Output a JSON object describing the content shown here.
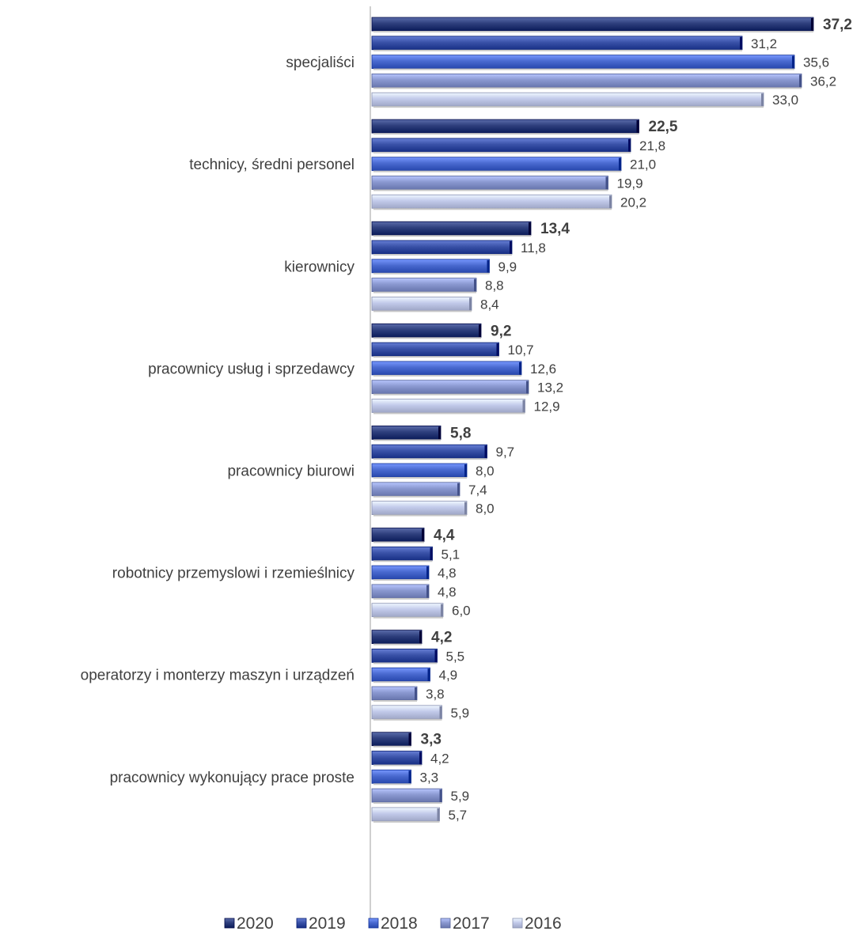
{
  "chart_data": {
    "type": "bar",
    "orientation": "horizontal",
    "categories": [
      "specjaliści",
      "technicy, średni personel",
      "kierownicy",
      "pracownicy usług i sprzedawcy",
      "pracownicy biurowi",
      "robotnicy przemyslowi i rzemieślnicy",
      "operatorzy i monterzy maszyn i urządzeń",
      "pracownicy wykonujący prace proste"
    ],
    "series": [
      {
        "name": "2020",
        "color": "#2E3F7D",
        "values": [
          37.2,
          22.5,
          13.4,
          9.2,
          5.8,
          4.4,
          4.2,
          3.3
        ],
        "labels": [
          "37,2",
          "22,5",
          "13,4",
          "9,2",
          "5,8",
          "4,4",
          "4,2",
          "3,3"
        ],
        "label_bold": true
      },
      {
        "name": "2019",
        "color": "#3A52A8",
        "values": [
          31.2,
          21.8,
          11.8,
          10.7,
          9.7,
          5.1,
          5.5,
          4.2
        ],
        "labels": [
          "31,2",
          "21,8",
          "11,8",
          "10,7",
          "9,7",
          "5,1",
          "5,5",
          "4,2"
        ]
      },
      {
        "name": "2018",
        "color": "#4A6AD0",
        "values": [
          35.6,
          21.0,
          9.9,
          12.6,
          8.0,
          4.8,
          4.9,
          3.3
        ],
        "labels": [
          "35,6",
          "21,0",
          "9,9",
          "12,6",
          "8,0",
          "4,8",
          "4,9",
          "3,3"
        ]
      },
      {
        "name": "2017",
        "color": "#8A98D0",
        "values": [
          36.2,
          19.9,
          8.8,
          13.2,
          7.4,
          4.8,
          3.8,
          5.9
        ],
        "labels": [
          "36,2",
          "19,9",
          "8,8",
          "13,2",
          "7,4",
          "4,8",
          "3,8",
          "5,9"
        ]
      },
      {
        "name": "2016",
        "color": "#C2CAEA",
        "values": [
          33.0,
          20.2,
          8.4,
          12.9,
          8.0,
          6.0,
          5.9,
          5.7
        ],
        "labels": [
          "33,0",
          "20,2",
          "8,4",
          "12,9",
          "8,0",
          "6,0",
          "5,9",
          "5,7"
        ]
      }
    ],
    "xlim": [
      0,
      40
    ],
    "grid": false,
    "legend_position": "bottom"
  }
}
